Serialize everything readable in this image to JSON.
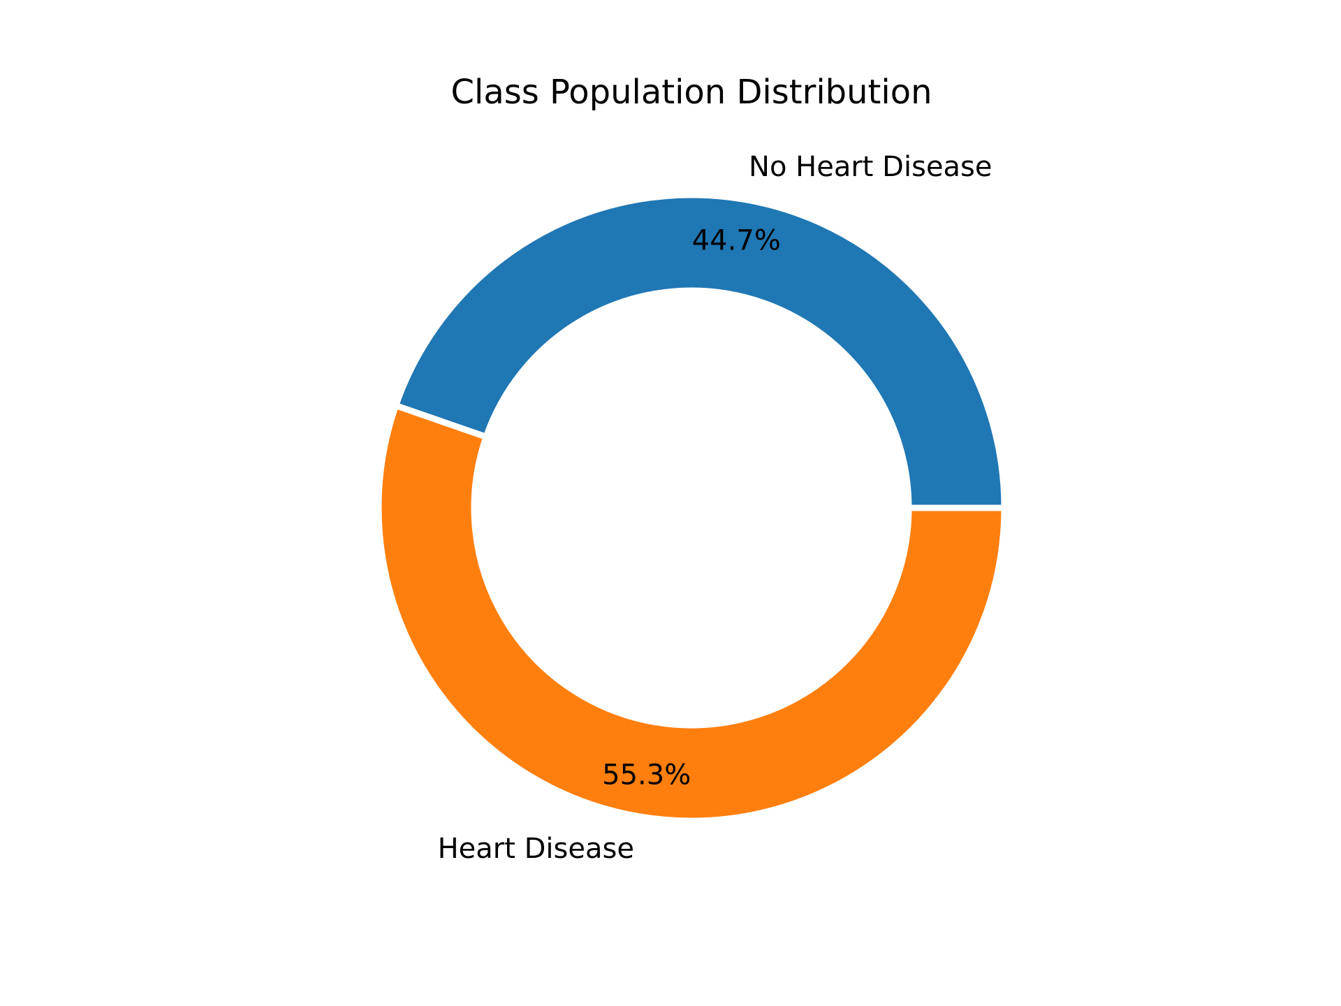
{
  "chart_data": {
    "type": "pie",
    "title": "Class Population Distribution",
    "donut": true,
    "start_angle_degrees": 0,
    "direction": "counterclockwise",
    "slices": [
      {
        "label": "No Heart Disease",
        "value": 44.7,
        "pct_label": "44.7%",
        "color": "#1f77b4"
      },
      {
        "label": "Heart Disease",
        "value": 55.3,
        "pct_label": "55.3%",
        "color": "#ff7f0e"
      }
    ],
    "wedge_edge_color": "#ffffff"
  }
}
